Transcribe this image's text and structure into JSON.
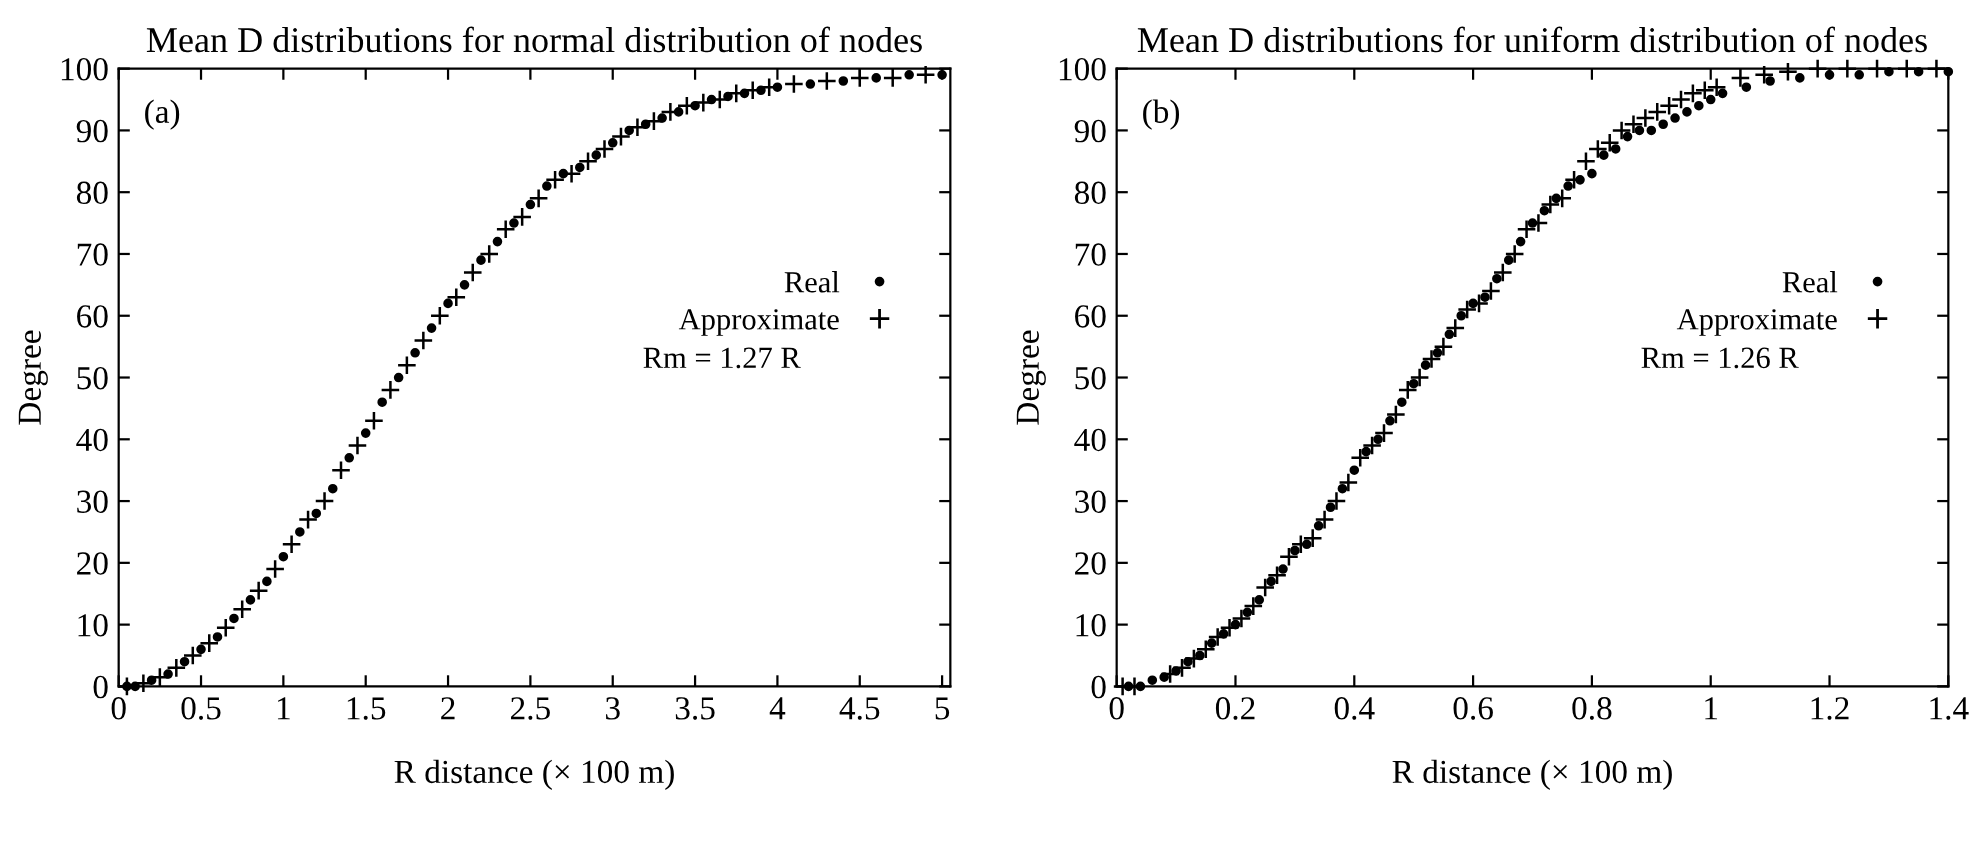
{
  "chart_data": [
    {
      "type": "scatter",
      "title": "Mean D distributions for normal distribution of nodes",
      "xlabel": "R distance (× 100 m)",
      "ylabel": "Degree",
      "annotations": [
        "(a)",
        "Rm = 1.27 R"
      ],
      "xlim": [
        0,
        5.05
      ],
      "xticks": [
        0,
        0.5,
        1,
        1.5,
        2,
        2.5,
        3,
        3.5,
        4,
        4.5,
        5
      ],
      "ylim": [
        0,
        100
      ],
      "yticks": [
        0,
        10,
        20,
        30,
        40,
        50,
        60,
        70,
        80,
        90,
        100
      ],
      "grid": false,
      "legend": "right",
      "series": [
        {
          "name": "Real",
          "color": "#000000",
          "marker": "circle",
          "x": [
            0.05,
            0.1,
            0.2,
            0.3,
            0.4,
            0.5,
            0.6,
            0.7,
            0.8,
            0.9,
            1.0,
            1.1,
            1.2,
            1.3,
            1.4,
            1.5,
            1.6,
            1.7,
            1.8,
            1.9,
            2.0,
            2.1,
            2.2,
            2.3,
            2.4,
            2.5,
            2.6,
            2.7,
            2.8,
            2.9,
            3.0,
            3.1,
            3.2,
            3.3,
            3.4,
            3.5,
            3.6,
            3.7,
            3.8,
            3.9,
            4.0,
            4.2,
            4.4,
            4.6,
            4.8,
            5.0
          ],
          "values": [
            0,
            0,
            1,
            2,
            4,
            6,
            8,
            11,
            14,
            17,
            21,
            25,
            28,
            32,
            37,
            41,
            46,
            50,
            54,
            58,
            62,
            65,
            69,
            72,
            75,
            78,
            81,
            83,
            84,
            86,
            88,
            90,
            91,
            92,
            93,
            94,
            95,
            95.5,
            96,
            96.5,
            97,
            97.5,
            98,
            98.5,
            99,
            99
          ]
        },
        {
          "name": "Approximate",
          "color": "#000000",
          "marker": "cross",
          "x": [
            0.05,
            0.15,
            0.25,
            0.35,
            0.45,
            0.55,
            0.65,
            0.75,
            0.85,
            0.95,
            1.05,
            1.15,
            1.25,
            1.35,
            1.45,
            1.55,
            1.65,
            1.75,
            1.85,
            1.95,
            2.05,
            2.15,
            2.25,
            2.35,
            2.45,
            2.55,
            2.65,
            2.75,
            2.85,
            2.95,
            3.05,
            3.15,
            3.25,
            3.35,
            3.45,
            3.55,
            3.65,
            3.75,
            3.85,
            3.95,
            4.1,
            4.3,
            4.5,
            4.7,
            4.9
          ],
          "values": [
            0,
            0.5,
            1.5,
            3,
            5,
            7,
            9.5,
            12.5,
            15.5,
            19,
            23,
            27,
            30,
            35,
            39,
            43,
            48,
            52,
            56,
            60,
            63,
            67,
            70,
            74,
            76,
            79,
            82,
            83,
            85,
            87,
            89,
            90.5,
            91.5,
            93,
            94,
            94.5,
            95,
            96,
            96.5,
            97,
            97.5,
            98,
            98.5,
            98.5,
            99
          ]
        }
      ]
    },
    {
      "type": "scatter",
      "title": "Mean D distributions for uniform distribution of nodes",
      "xlabel": "R distance (× 100 m)",
      "ylabel": "Degree",
      "annotations": [
        "(b)",
        "Rm = 1.26 R"
      ],
      "xlim": [
        0,
        1.4
      ],
      "xticks": [
        0,
        0.2,
        0.4,
        0.6,
        0.8,
        1,
        1.2,
        1.4
      ],
      "ylim": [
        0,
        100
      ],
      "yticks": [
        0,
        10,
        20,
        30,
        40,
        50,
        60,
        70,
        80,
        90,
        100
      ],
      "grid": false,
      "legend": "right",
      "series": [
        {
          "name": "Real",
          "color": "#000000",
          "marker": "circle",
          "x": [
            0.02,
            0.04,
            0.06,
            0.08,
            0.1,
            0.12,
            0.14,
            0.16,
            0.18,
            0.2,
            0.22,
            0.24,
            0.26,
            0.28,
            0.3,
            0.32,
            0.34,
            0.36,
            0.38,
            0.4,
            0.42,
            0.44,
            0.46,
            0.48,
            0.5,
            0.52,
            0.54,
            0.56,
            0.58,
            0.6,
            0.62,
            0.64,
            0.66,
            0.68,
            0.7,
            0.72,
            0.74,
            0.76,
            0.78,
            0.8,
            0.82,
            0.84,
            0.86,
            0.88,
            0.9,
            0.92,
            0.94,
            0.96,
            0.98,
            1.0,
            1.02,
            1.06,
            1.1,
            1.15,
            1.2,
            1.25,
            1.3,
            1.35,
            1.4
          ],
          "values": [
            0,
            0,
            1,
            1.5,
            2.5,
            4,
            5,
            7,
            8.5,
            10,
            12,
            14,
            17,
            19,
            22,
            23,
            26,
            29,
            32,
            35,
            38,
            40,
            43,
            46,
            49,
            52,
            54,
            57,
            60,
            62,
            63,
            66,
            69,
            72,
            75,
            77,
            79,
            81,
            82,
            83,
            86,
            87,
            89,
            90,
            90,
            91,
            92,
            93,
            94,
            95,
            96,
            97,
            98,
            98.5,
            99,
            99,
            99.5,
            99.5,
            99.5
          ]
        },
        {
          "name": "Approximate",
          "color": "#000000",
          "marker": "cross",
          "x": [
            0.01,
            0.03,
            0.05,
            0.07,
            0.09,
            0.11,
            0.13,
            0.15,
            0.17,
            0.19,
            0.21,
            0.23,
            0.25,
            0.27,
            0.29,
            0.31,
            0.33,
            0.35,
            0.37,
            0.39,
            0.41,
            0.43,
            0.45,
            0.47,
            0.49,
            0.51,
            0.53,
            0.55,
            0.57,
            0.59,
            0.61,
            0.63,
            0.65,
            0.67,
            0.69,
            0.71,
            0.73,
            0.75,
            0.77,
            0.79,
            0.81,
            0.83,
            0.85,
            0.87,
            0.89,
            0.91,
            0.93,
            0.95,
            0.97,
            0.99,
            1.01,
            1.05,
            1.09,
            1.13,
            1.18,
            1.23,
            1.28,
            1.33,
            1.38
          ],
          "values": [
            0,
            0,
            null,
            null,
            2,
            3,
            4.5,
            6,
            8,
            9.5,
            11,
            13,
            16,
            18,
            21,
            23,
            24,
            27,
            30,
            33,
            37,
            39,
            41,
            44,
            48,
            50,
            53,
            55,
            58,
            61,
            62,
            64,
            67,
            70,
            74,
            75,
            78,
            79,
            82,
            85,
            87,
            88,
            90,
            91,
            92,
            93,
            94,
            95,
            96,
            96.5,
            97,
            98.5,
            99,
            99.5,
            100,
            100,
            100,
            100,
            100
          ]
        }
      ]
    }
  ]
}
